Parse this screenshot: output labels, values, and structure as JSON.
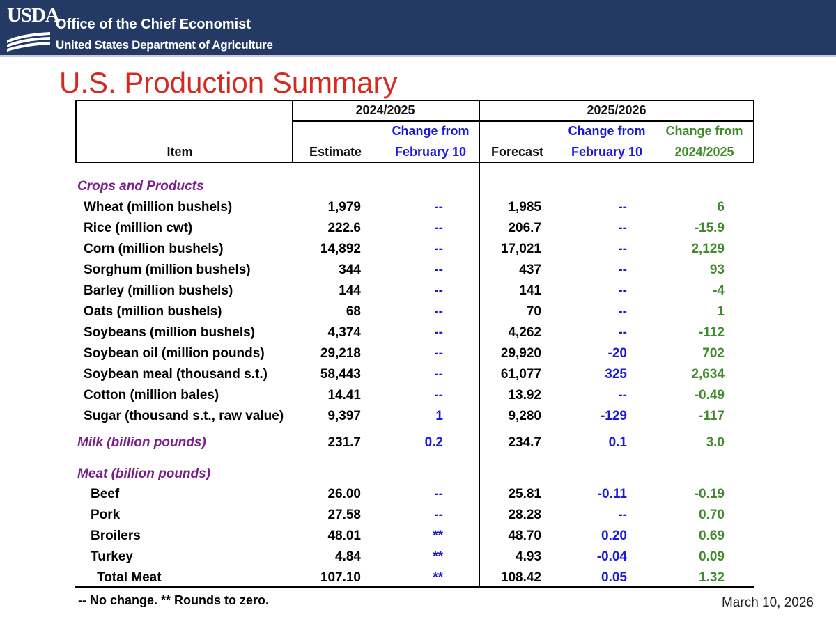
{
  "header": {
    "logo_text": "USDA",
    "org": "Office of the Chief Economist",
    "dept": "United States Department of Agriculture"
  },
  "title": "U.S. Production Summary",
  "table": {
    "col_item": "Item",
    "group1": "2024/2025",
    "group2": "2025/2026",
    "estimate": "Estimate",
    "change_feb_line1": "Change from",
    "change_feb_line2": "February 10",
    "forecast": "Forecast",
    "change_prev_line1": "Change from",
    "change_prev_line2": "2024/2025",
    "sections": [
      {
        "label": "Crops and Products",
        "rows": [
          {
            "item": "Wheat (million bushels)",
            "est": "1,979",
            "chg1": "--",
            "fc": "1,985",
            "chg2": "--",
            "chg3": "6"
          },
          {
            "item": "Rice (million cwt)",
            "est": "222.6",
            "chg1": "--",
            "fc": "206.7",
            "chg2": "--",
            "chg3": "-15.9"
          },
          {
            "item": "Corn (million bushels)",
            "est": "14,892",
            "chg1": "--",
            "fc": "17,021",
            "chg2": "--",
            "chg3": "2,129"
          },
          {
            "item": "Sorghum (million bushels)",
            "est": "344",
            "chg1": "--",
            "fc": "437",
            "chg2": "--",
            "chg3": "93"
          },
          {
            "item": "Barley (million bushels)",
            "est": "144",
            "chg1": "--",
            "fc": "141",
            "chg2": "--",
            "chg3": "-4"
          },
          {
            "item": "Oats (million bushels)",
            "est": "68",
            "chg1": "--",
            "fc": "70",
            "chg2": "--",
            "chg3": "1"
          },
          {
            "item": "Soybeans (million bushels)",
            "est": "4,374",
            "chg1": "--",
            "fc": "4,262",
            "chg2": "--",
            "chg3": "-112"
          },
          {
            "item": "Soybean oil (million pounds)",
            "est": "29,218",
            "chg1": "--",
            "fc": "29,920",
            "chg2": "-20",
            "chg3": "702"
          },
          {
            "item": "Soybean meal (thousand s.t.)",
            "est": "58,443",
            "chg1": "--",
            "fc": "61,077",
            "chg2": "325",
            "chg3": "2,634"
          },
          {
            "item": "Cotton (million bales)",
            "est": "14.41",
            "chg1": "--",
            "fc": "13.92",
            "chg2": "--",
            "chg3": "-0.49"
          },
          {
            "item": "Sugar (thousand s.t., raw value)",
            "est": "9,397",
            "chg1": "1",
            "fc": "9,280",
            "chg2": "-129",
            "chg3": "-117"
          }
        ]
      },
      {
        "label": "Milk (billion pounds)",
        "est": "231.7",
        "chg1": "0.2",
        "fc": "234.7",
        "chg2": "0.1",
        "chg3": "3.0"
      },
      {
        "label": "Meat (billion pounds)",
        "rows": [
          {
            "item": "Beef",
            "est": "26.00",
            "chg1": "--",
            "fc": "25.81",
            "chg2": "-0.11",
            "chg3": "-0.19"
          },
          {
            "item": "Pork",
            "est": "27.58",
            "chg1": "--",
            "fc": "28.28",
            "chg2": "--",
            "chg3": "0.70"
          },
          {
            "item": "Broilers",
            "est": "48.01",
            "chg1": "**",
            "fc": "48.70",
            "chg2": "0.20",
            "chg3": "0.69"
          },
          {
            "item": "Turkey",
            "est": "4.84",
            "chg1": "**",
            "fc": "4.93",
            "chg2": "-0.04",
            "chg3": "0.09"
          },
          {
            "item": "Total Meat",
            "est": "107.10",
            "chg1": "**",
            "fc": "108.42",
            "chg2": "0.05",
            "chg3": "1.32"
          }
        ]
      }
    ]
  },
  "footnote": "-- No change.  ** Rounds to zero.",
  "date": "March 10, 2026",
  "colors": {
    "banner": "#243a64",
    "title": "#d42a20",
    "blue": "#1a1ad6",
    "green": "#3f8a2a",
    "purple": "#7a1f8a"
  }
}
